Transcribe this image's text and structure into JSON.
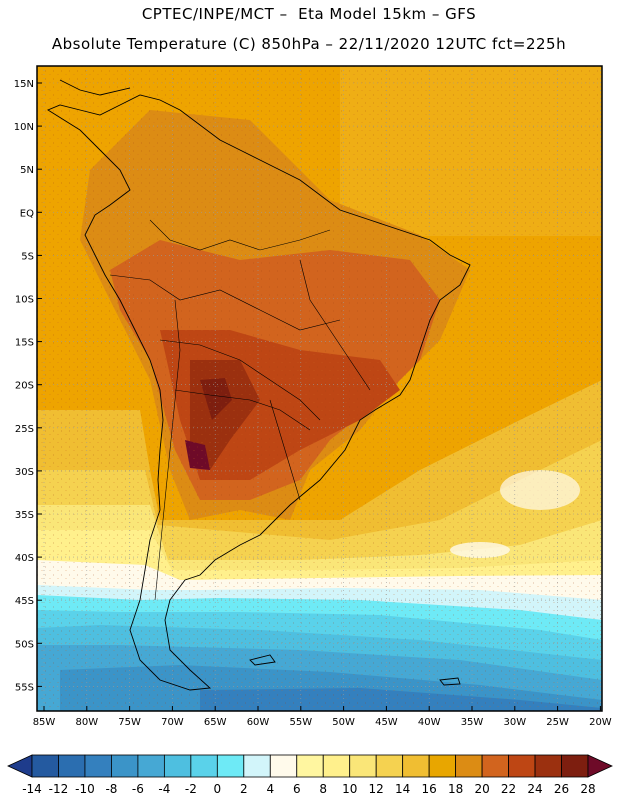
{
  "header": {
    "line1": "CPTEC/INPE/MCT –  Eta Model 15km – GFS",
    "line2": "Absolute Temperature (C) 850hPa – 22/11/2020 12UTC fct=225h"
  },
  "map": {
    "lat_labels": [
      "15N",
      "10N",
      "5N",
      "EQ",
      "5S",
      "10S",
      "15S",
      "20S",
      "25S",
      "30S",
      "35S",
      "40S",
      "45S",
      "50S",
      "55S"
    ],
    "lon_labels": [
      "85W",
      "80W",
      "75W",
      "70W",
      "65W",
      "60W",
      "55W",
      "50W",
      "45W",
      "40W",
      "35W",
      "30W",
      "25W",
      "20W"
    ]
  },
  "colorbar": {
    "labels": [
      "-14",
      "-12",
      "-10",
      "-8",
      "-6",
      "-4",
      "-2",
      "0",
      "2",
      "4",
      "6",
      "8",
      "10",
      "12",
      "14",
      "16",
      "18",
      "20",
      "22",
      "24",
      "26",
      "28"
    ],
    "colors": [
      "#1e3c8c",
      "#245aa0",
      "#2b6eb0",
      "#3480be",
      "#3b94c8",
      "#46a8d4",
      "#4ebfe0",
      "#5ad2ea",
      "#6eeaf6",
      "#d2f5fa",
      "#fffaeb",
      "#fff6a0",
      "#fff08c",
      "#fae678",
      "#f5d250",
      "#f0be32",
      "#e8a600",
      "#dc8c14",
      "#d2641e",
      "#be4614",
      "#9b300f",
      "#7d1e0f",
      "#6e0a28"
    ]
  }
}
